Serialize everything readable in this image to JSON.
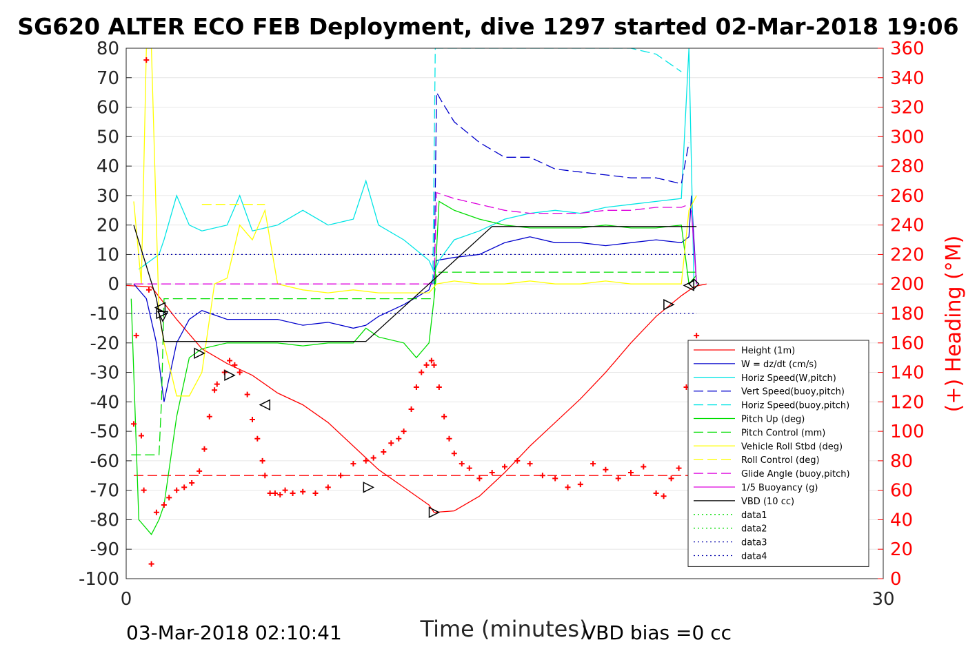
{
  "chart_data": {
    "type": "line",
    "title": "SG620 ALTER ECO FEB Deployment, dive 1297 started 02-Mar-2018 19:06",
    "xlabel": "Time (minutes)",
    "ylabel": "",
    "ylabel_right": "(+) Heading (°M)",
    "xlim": [
      0,
      30
    ],
    "ylim": [
      -100,
      80
    ],
    "ylim_right": [
      0,
      360
    ],
    "x_ticks": [
      "0",
      "30"
    ],
    "y_ticks": [
      "80",
      "70",
      "60",
      "50",
      "40",
      "30",
      "20",
      "10",
      "0",
      "-10",
      "-20",
      "-30",
      "-40",
      "-50",
      "-60",
      "-70",
      "-80",
      "-90",
      "-100"
    ],
    "y_ticks_right": [
      "360",
      "340",
      "320",
      "300",
      "280",
      "260",
      "240",
      "220",
      "200",
      "180",
      "160",
      "140",
      "120",
      "100",
      "80",
      "60",
      "40",
      "20",
      "0"
    ],
    "grid": true,
    "legend_position": "lower-right",
    "footer_left": "03-Mar-2018 02:10:41",
    "footer_right": "VBD bias =0 cc",
    "series": [
      {
        "name": "Height (1m)",
        "color": "#ff0000",
        "style": "solid",
        "x": [
          0,
          1,
          2,
          3,
          4,
          5,
          6,
          7,
          8,
          9,
          10,
          11,
          12,
          12.2,
          13,
          14,
          15,
          16,
          17,
          18,
          19,
          20,
          21,
          22,
          22.5,
          22.7,
          23
        ],
        "y": [
          -0.5,
          -1,
          -12,
          -22,
          -27,
          -31,
          -37,
          -41,
          -47,
          -55,
          -63,
          -69,
          -75,
          -77.5,
          -77,
          -72,
          -64,
          -55,
          -47,
          -39,
          -30,
          -20,
          -11,
          -4,
          -1,
          -0.5,
          0
        ]
      },
      {
        "name": "W = dz/dt (cm/s)",
        "color": "#0000cc",
        "style": "solid",
        "x": [
          0.3,
          0.8,
          1.2,
          1.5,
          2,
          2.5,
          3,
          4,
          5,
          6,
          7,
          8,
          9,
          9.5,
          10,
          11,
          12,
          12.2,
          12.3,
          13,
          14,
          15,
          16,
          17,
          18,
          19,
          20,
          21,
          22,
          22.3,
          22.4,
          22.6
        ],
        "y": [
          0,
          -5,
          -20,
          -40,
          -20,
          -12,
          -9,
          -12,
          -12,
          -12,
          -14,
          -13,
          -15,
          -14,
          -11,
          -7,
          -2,
          3,
          8,
          9,
          10,
          14,
          16,
          14,
          14,
          13,
          14,
          15,
          14,
          16,
          30,
          0
        ]
      },
      {
        "name": "Horiz Speed(W,pitch)",
        "color": "#00e5e5",
        "style": "solid",
        "x": [
          0.5,
          1.3,
          1.5,
          2,
          2.5,
          3,
          4,
          4.5,
          5,
          6,
          7,
          8,
          9,
          9.5,
          10,
          11,
          12,
          12.2,
          12.4,
          13,
          14,
          15,
          16,
          17,
          18,
          19,
          20,
          21,
          22,
          22.3,
          22.5
        ],
        "y": [
          5,
          10,
          15,
          30,
          20,
          18,
          20,
          30,
          18,
          20,
          25,
          20,
          22,
          35,
          20,
          15,
          8,
          4,
          8,
          15,
          18,
          22,
          24,
          25,
          24,
          26,
          27,
          28,
          29,
          80,
          0
        ]
      },
      {
        "name": "Vert Speed(buoy,pitch)",
        "color": "#0000cc",
        "style": "dashed",
        "x": [
          12.2,
          12.3,
          12.5,
          13,
          14,
          15,
          16,
          17,
          18,
          19,
          20,
          21,
          22,
          22.3
        ],
        "y": [
          0,
          65,
          62,
          55,
          48,
          43,
          43,
          39,
          38,
          37,
          36,
          36,
          34,
          48
        ]
      },
      {
        "name": "Horiz Speed(buoy,pitch)",
        "color": "#00e5e5",
        "style": "dashed",
        "x": [
          12.15,
          12.25,
          12.3,
          19,
          20,
          21,
          22
        ],
        "y": [
          0,
          80,
          80,
          80,
          80,
          78,
          72
        ]
      },
      {
        "name": "Pitch Up (deg)",
        "color": "#00dd00",
        "style": "solid",
        "x": [
          0.2,
          0.5,
          1,
          1.3,
          1.5,
          2,
          2.5,
          3,
          4,
          5,
          6,
          7,
          8,
          9,
          9.5,
          10,
          11,
          11.5,
          12,
          12.2,
          12.4,
          13,
          14,
          15,
          16,
          17,
          18,
          19,
          20,
          21,
          22,
          22.3,
          22.6
        ],
        "y": [
          -5,
          -80,
          -85,
          -80,
          -75,
          -45,
          -25,
          -22,
          -20,
          -20,
          -20,
          -21,
          -20,
          -20,
          -15,
          -18,
          -20,
          -25,
          -20,
          -5,
          28,
          25,
          22,
          20,
          19,
          19,
          19,
          20,
          19,
          19,
          20,
          0,
          3
        ]
      },
      {
        "name": "Pitch Control (mm)",
        "color": "#00dd00",
        "style": "dashed",
        "x": [
          0.2,
          1.3,
          1.4,
          1.5,
          5,
          12.2,
          12.3,
          22.6
        ],
        "y": [
          -58,
          -58,
          -40,
          -5,
          -5,
          -5,
          4,
          4
        ]
      },
      {
        "name": "Vehicle Roll Stbd (deg)",
        "color": "#ffff00",
        "style": "solid",
        "x": [
          0.3,
          0.6,
          0.8,
          1,
          1.3,
          1.5,
          2,
          2.5,
          3,
          3.5,
          4,
          4.5,
          5,
          5.5,
          6,
          7,
          8,
          9,
          10,
          11,
          12,
          12.3,
          13,
          14,
          15,
          16,
          17,
          18,
          19,
          20,
          21,
          22,
          22.3,
          22.6
        ],
        "y": [
          28,
          0,
          80,
          80,
          -10,
          -20,
          -38,
          -38,
          -30,
          0,
          2,
          20,
          15,
          25,
          0,
          -2,
          -3,
          -2,
          -3,
          -3,
          -3,
          0,
          1,
          0,
          0,
          1,
          0,
          0,
          1,
          0,
          0,
          0,
          25,
          30
        ]
      },
      {
        "name": "Roll Control (deg)",
        "color": "#ffff00",
        "style": "dashed",
        "x": [
          3,
          5,
          5.5
        ],
        "y": [
          27,
          27,
          27
        ]
      },
      {
        "name": "Glide Angle (buoy,pitch)",
        "color": "#dd00dd",
        "style": "dashed",
        "x": [
          0.3,
          12.2,
          12.3,
          13,
          14,
          15,
          16,
          17,
          18,
          19,
          20,
          21,
          22,
          22.3
        ],
        "y": [
          0,
          0,
          31,
          29,
          27,
          25,
          24,
          24,
          24,
          25,
          25,
          26,
          26,
          27
        ]
      },
      {
        "name": "1/5 Buoyancy (g)",
        "color": "#dd00dd",
        "style": "solid",
        "x": [
          22.4,
          22.6
        ],
        "y": [
          25,
          0
        ]
      },
      {
        "name": "VBD (10 cc)",
        "color": "#000000",
        "style": "solid",
        "x": [
          0.3,
          1.2,
          1.5,
          9.5,
          14.5,
          22.6
        ],
        "y": [
          20,
          -5,
          -19.5,
          -19.5,
          19.5,
          19.5
        ]
      },
      {
        "name": "data1",
        "color": "#00dd00",
        "style": "dotted",
        "x": [],
        "y": []
      },
      {
        "name": "data2",
        "color": "#00dd00",
        "style": "dotted",
        "x": [],
        "y": []
      },
      {
        "name": "data3",
        "color": "#0000aa",
        "style": "dotted",
        "x": [
          0.3,
          22.6
        ],
        "y": [
          10,
          10
        ]
      },
      {
        "name": "data4",
        "color": "#0000aa",
        "style": "dotted",
        "x": [
          0.3,
          22.6
        ],
        "y": [
          -10,
          -10
        ]
      }
    ],
    "reference_lines": [
      {
        "color": "#ff0000",
        "style": "dashed",
        "y": -65,
        "x": [
          0.3,
          22.6
        ]
      }
    ],
    "heading_points": {
      "color": "#ff0000",
      "x": [
        0.3,
        0.4,
        0.6,
        0.7,
        0.8,
        0.9,
        1.0,
        1.2,
        1.5,
        1.7,
        2.0,
        2.3,
        2.6,
        2.9,
        3.1,
        3.3,
        3.5,
        3.6,
        3.9,
        4.1,
        4.3,
        4.5,
        4.8,
        5.0,
        5.2,
        5.4,
        5.5,
        5.7,
        5.9,
        6.1,
        6.3,
        6.6,
        7.0,
        7.5,
        8.0,
        8.5,
        9.0,
        9.5,
        9.8,
        10.2,
        10.5,
        10.8,
        11.0,
        11.3,
        11.5,
        11.7,
        11.9,
        12.1,
        12.2,
        12.4,
        12.6,
        12.8,
        13.0,
        13.3,
        13.6,
        14.0,
        14.5,
        15.0,
        15.5,
        16.0,
        16.5,
        17.0,
        17.5,
        18.0,
        18.5,
        19.0,
        19.5,
        20.0,
        20.5,
        21.0,
        21.3,
        21.6,
        21.9,
        22.2,
        22.4,
        22.6
      ],
      "y": [
        105,
        165,
        97,
        60,
        352,
        196,
        10,
        45,
        50,
        55,
        60,
        62,
        65,
        73,
        88,
        110,
        128,
        132,
        140,
        148,
        145,
        140,
        125,
        108,
        95,
        80,
        70,
        58,
        58,
        57,
        60,
        58,
        59,
        58,
        62,
        70,
        78,
        80,
        82,
        86,
        92,
        95,
        100,
        115,
        130,
        140,
        145,
        148,
        145,
        130,
        110,
        95,
        85,
        78,
        75,
        68,
        72,
        76,
        80,
        78,
        70,
        68,
        62,
        64,
        78,
        74,
        68,
        72,
        76,
        58,
        56,
        68,
        75,
        130,
        160,
        165
      ]
    },
    "triangle_markers": [
      {
        "x": 1.35,
        "y": -8,
        "dir": "left"
      },
      {
        "x": 1.4,
        "y": -10,
        "dir": "right"
      },
      {
        "x": 1.45,
        "y": -11,
        "dir": "down"
      },
      {
        "x": 2.9,
        "y": -23.5,
        "dir": "right"
      },
      {
        "x": 4.1,
        "y": -31,
        "dir": "right"
      },
      {
        "x": 5.5,
        "y": -41,
        "dir": "left"
      },
      {
        "x": 9.6,
        "y": -69,
        "dir": "right"
      },
      {
        "x": 12.2,
        "y": -77.5,
        "dir": "right"
      },
      {
        "x": 21.5,
        "y": -7,
        "dir": "right"
      },
      {
        "x": 22.3,
        "y": -0.5,
        "dir": "left"
      },
      {
        "x": 22.5,
        "y": 0,
        "dir": "diamond"
      }
    ]
  }
}
